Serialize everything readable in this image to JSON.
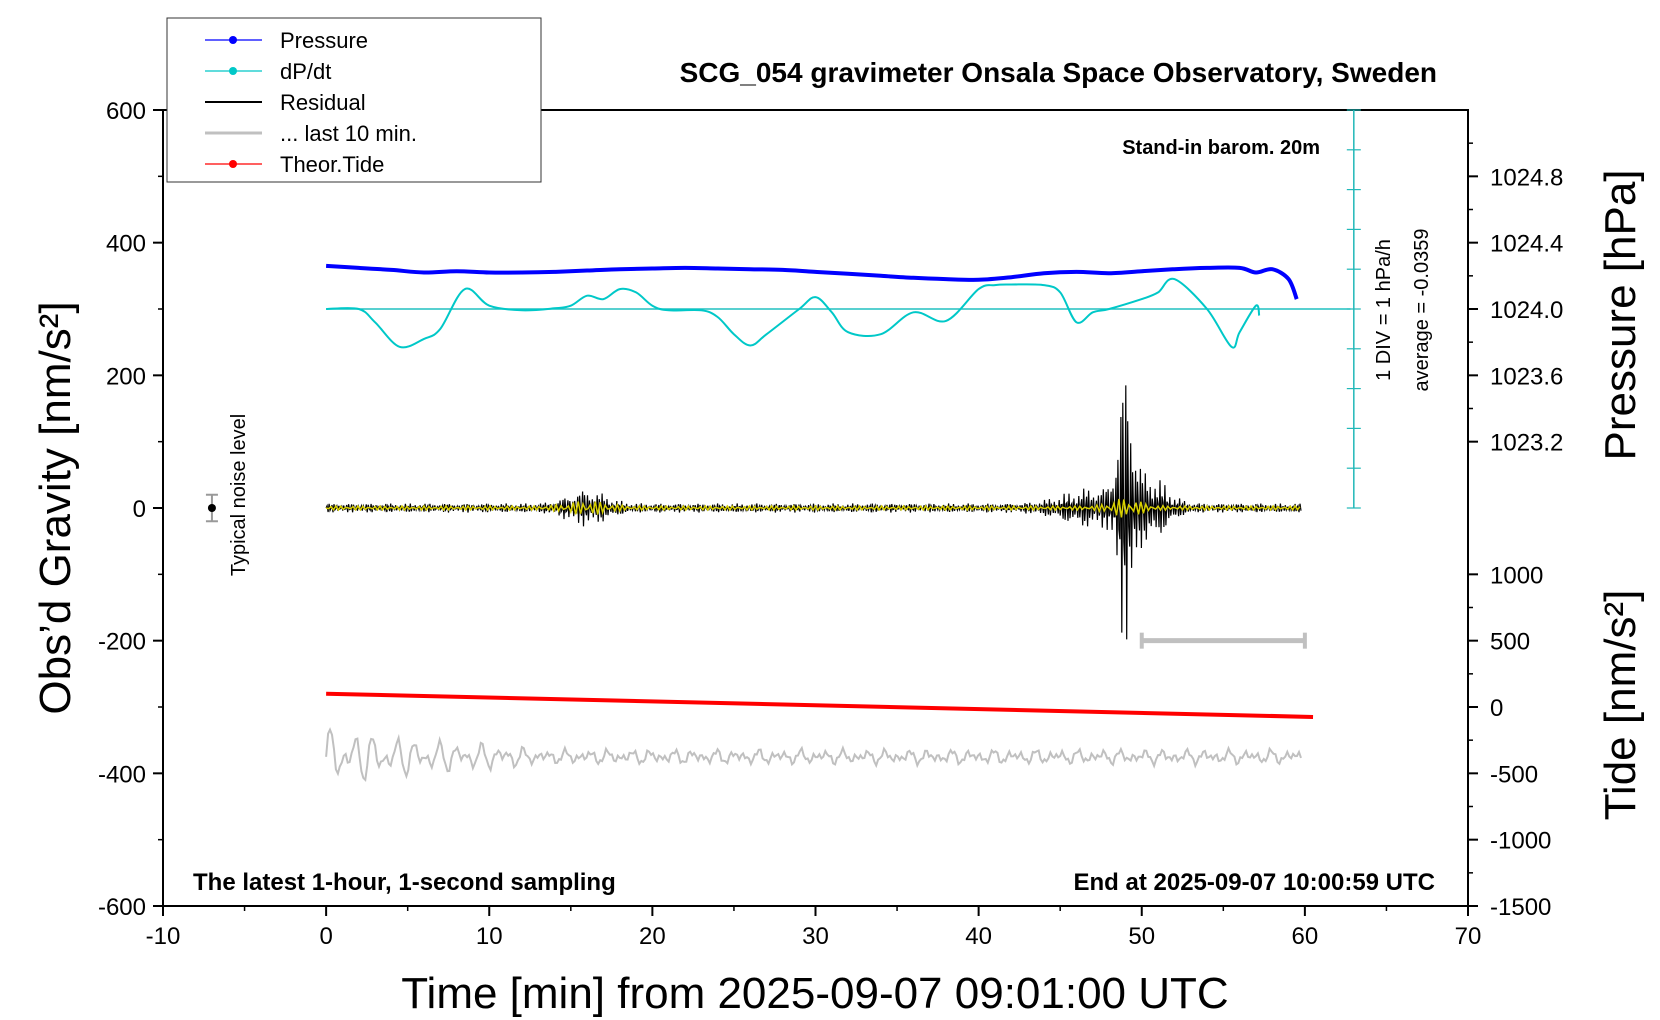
{
  "chart_data": {
    "type": "line",
    "title": "SCG_054 gravimeter Onsala Space Observatory, Sweden",
    "xlabel": "Time [min] from 2025-09-07 09:01:00 UTC",
    "ylabel_left": "Obs’d Gravity [nm/s²]",
    "ylabel_right_top": "Pressure [hPa]",
    "ylabel_right_bottom": "Tide [nm/s²]",
    "xlim": [
      -10,
      70
    ],
    "ylim": [
      -600,
      600
    ],
    "x_ticks": [
      "-10",
      "0",
      "10",
      "20",
      "30",
      "40",
      "50",
      "60",
      "70"
    ],
    "y_ticks": [
      "600",
      "400",
      "200",
      "0",
      "-200",
      "-400",
      "-600"
    ],
    "pressure_ticks": [
      "1024.8",
      "1024.4",
      "1024.0",
      "1023.6",
      "1023.2"
    ],
    "tide_ticks": [
      "1000",
      "500",
      "0",
      "-500",
      "-1000",
      "-1500"
    ],
    "legend": [
      {
        "label": "Pressure",
        "color": "#0000ff",
        "marker": true
      },
      {
        "label": "dP/dt",
        "color": "#00c8c8",
        "marker": true
      },
      {
        "label": "Residual",
        "color": "#000000",
        "marker": false
      },
      {
        "label": "... last 10 min.",
        "color": "#c0c0c0",
        "marker": false
      },
      {
        "label": "Theor.Tide",
        "color": "#ff0000",
        "marker": true
      }
    ],
    "annotations": {
      "barometer": "Stand-in barom. 20m",
      "scale_div": "1 DIV = 1 hPa/h",
      "average": "average = -0.0359",
      "noise": "Typical noise level",
      "latest": "The latest 1-hour, 1-second sampling",
      "end": "End at 2025-09-07 10:00:59 UTC"
    },
    "series": [
      {
        "name": "Pressure",
        "color": "#0000ff",
        "x": [
          0,
          2,
          4,
          6,
          8,
          10,
          12,
          14,
          16,
          18,
          20,
          22,
          24,
          26,
          28,
          30,
          32,
          34,
          36,
          38,
          40,
          42,
          44,
          46,
          48,
          50,
          52,
          54,
          56,
          57,
          58,
          59,
          59.5
        ],
        "y": [
          365,
          362,
          359,
          355,
          357,
          355,
          355,
          356,
          358,
          360,
          361,
          362,
          361,
          360,
          359,
          356,
          353,
          350,
          347,
          345,
          344,
          348,
          354,
          356,
          354,
          357,
          360,
          362,
          362,
          355,
          360,
          345,
          315
        ]
      },
      {
        "name": "dP/dt",
        "color": "#00c8c8",
        "x": [
          0,
          2,
          3,
          4.5,
          6,
          7,
          8.5,
          10,
          12,
          14,
          15,
          16,
          17,
          18,
          19,
          20,
          21,
          23,
          24,
          25,
          26,
          27,
          29,
          30,
          31,
          32,
          34,
          36,
          38,
          40,
          41,
          42,
          44,
          45,
          46,
          47,
          48,
          50,
          51,
          52,
          54,
          55.5,
          56,
          57,
          57.2
        ],
        "y": [
          300,
          300,
          280,
          243,
          255,
          270,
          330,
          305,
          298,
          301,
          305,
          320,
          315,
          330,
          325,
          305,
          298,
          298,
          288,
          262,
          245,
          262,
          300,
          318,
          295,
          265,
          262,
          295,
          282,
          330,
          336,
          337,
          336,
          325,
          280,
          295,
          300,
          315,
          325,
          345,
          300,
          243,
          265,
          305,
          290
        ]
      },
      {
        "name": "Theor.Tide",
        "color": "#ff0000",
        "x": [
          0,
          60.5
        ],
        "y": [
          -280,
          -315
        ]
      }
    ],
    "noise_level": {
      "x": -7,
      "y": 0,
      "halfrange": 20
    },
    "gray_bar": {
      "x1": 50,
      "x2": 60,
      "y": -200
    }
  }
}
